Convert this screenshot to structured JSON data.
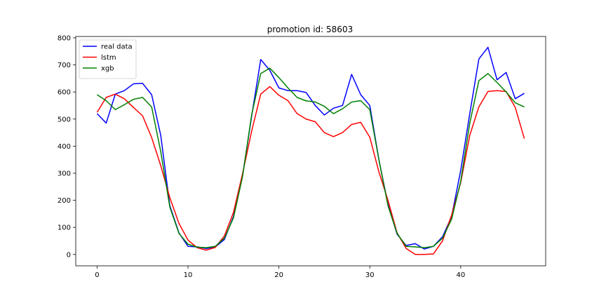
{
  "chart_data": {
    "type": "line",
    "title": "promotion id: 58603",
    "xlabel": "",
    "ylabel": "",
    "xlim": [
      -2.35,
      49.35
    ],
    "ylim": [
      -42,
      805
    ],
    "xticks": [
      0,
      10,
      20,
      30,
      40
    ],
    "yticks": [
      0,
      100,
      200,
      300,
      400,
      500,
      600,
      700,
      800
    ],
    "grid": false,
    "legend_position": "top-left",
    "x": [
      0,
      1,
      2,
      3,
      4,
      5,
      6,
      7,
      8,
      9,
      10,
      11,
      12,
      13,
      14,
      15,
      16,
      17,
      18,
      19,
      20,
      21,
      22,
      23,
      24,
      25,
      26,
      27,
      28,
      29,
      30,
      31,
      32,
      33,
      34,
      35,
      36,
      37,
      38,
      39,
      40,
      41,
      42,
      43,
      44,
      45,
      46,
      47
    ],
    "series": [
      {
        "name": "real data",
        "color": "#0000ff",
        "values": [
          520,
          485,
          592,
          605,
          630,
          632,
          590,
          440,
          180,
          80,
          30,
          28,
          22,
          28,
          55,
          140,
          290,
          510,
          720,
          680,
          615,
          605,
          605,
          598,
          550,
          515,
          540,
          550,
          665,
          590,
          550,
          350,
          185,
          75,
          33,
          40,
          20,
          30,
          65,
          140,
          310,
          520,
          722,
          765,
          645,
          672,
          575,
          595
        ]
      },
      {
        "name": "lstm",
        "color": "#ff0000",
        "values": [
          525,
          580,
          592,
          575,
          543,
          512,
          432,
          328,
          210,
          115,
          53,
          25,
          16,
          26,
          68,
          155,
          298,
          455,
          592,
          620,
          588,
          568,
          520,
          500,
          490,
          450,
          435,
          450,
          480,
          488,
          433,
          305,
          200,
          80,
          22,
          0,
          0,
          2,
          50,
          145,
          265,
          440,
          545,
          602,
          605,
          602,
          543,
          428
        ]
      },
      {
        "name": "xgb",
        "color": "#008000",
        "values": [
          590,
          568,
          535,
          553,
          573,
          580,
          545,
          380,
          175,
          78,
          38,
          27,
          25,
          30,
          60,
          135,
          288,
          515,
          668,
          688,
          653,
          615,
          580,
          567,
          563,
          547,
          520,
          538,
          563,
          568,
          535,
          350,
          180,
          78,
          30,
          28,
          25,
          30,
          60,
          130,
          270,
          485,
          642,
          668,
          635,
          600,
          560,
          545
        ]
      }
    ]
  }
}
